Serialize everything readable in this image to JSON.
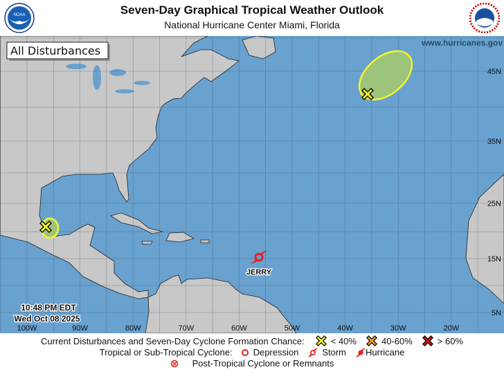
{
  "header": {
    "title": "Seven-Day Graphical Tropical Weather Outlook",
    "subtitle": "National Hurricane Center  Miami, Florida",
    "left_logo": "NOAA",
    "right_logo": "NATIONAL WEATHER SERVICE"
  },
  "map": {
    "filter_label": "All Disturbances",
    "website": "www.hurricanes.gov",
    "timestamp_time": "10:48 PM EDT",
    "timestamp_date": "Wed Oct 08 2025",
    "lon_labels": [
      "100W",
      "90W",
      "80W",
      "70W",
      "60W",
      "50W",
      "40W",
      "30W",
      "20W"
    ],
    "lat_labels": [
      "45N",
      "35N",
      "25N",
      "15N",
      "5N"
    ],
    "colors": {
      "ocean": "#69a1cf",
      "land": "#c8c8c8",
      "low_chance": "#f5f52a",
      "medium_chance": "#f5a030",
      "high_chance": "#d01010",
      "storm": "#e82020"
    },
    "disturbances": [
      {
        "location": "Bay of Campeche",
        "chance": "< 40%",
        "icon": "yellow-x-icon"
      },
      {
        "location": "North Atlantic",
        "chance": "< 40%",
        "icon": "yellow-x-icon"
      }
    ],
    "storms": [
      {
        "name": "JERRY",
        "type": "Storm",
        "icon": "tropical-storm-icon"
      }
    ]
  },
  "legend": {
    "formation_label": "Current Disturbances and Seven-Day Cyclone Formation Chance:",
    "low": "< 40%",
    "medium": "40-60%",
    "high": "> 60%",
    "cyclone_label": "Tropical or Sub-Tropical Cyclone:",
    "depression": "Depression",
    "storm": "Storm",
    "hurricane": "Hurricane",
    "post_tropical": "Post-Tropical Cyclone or Remnants"
  }
}
